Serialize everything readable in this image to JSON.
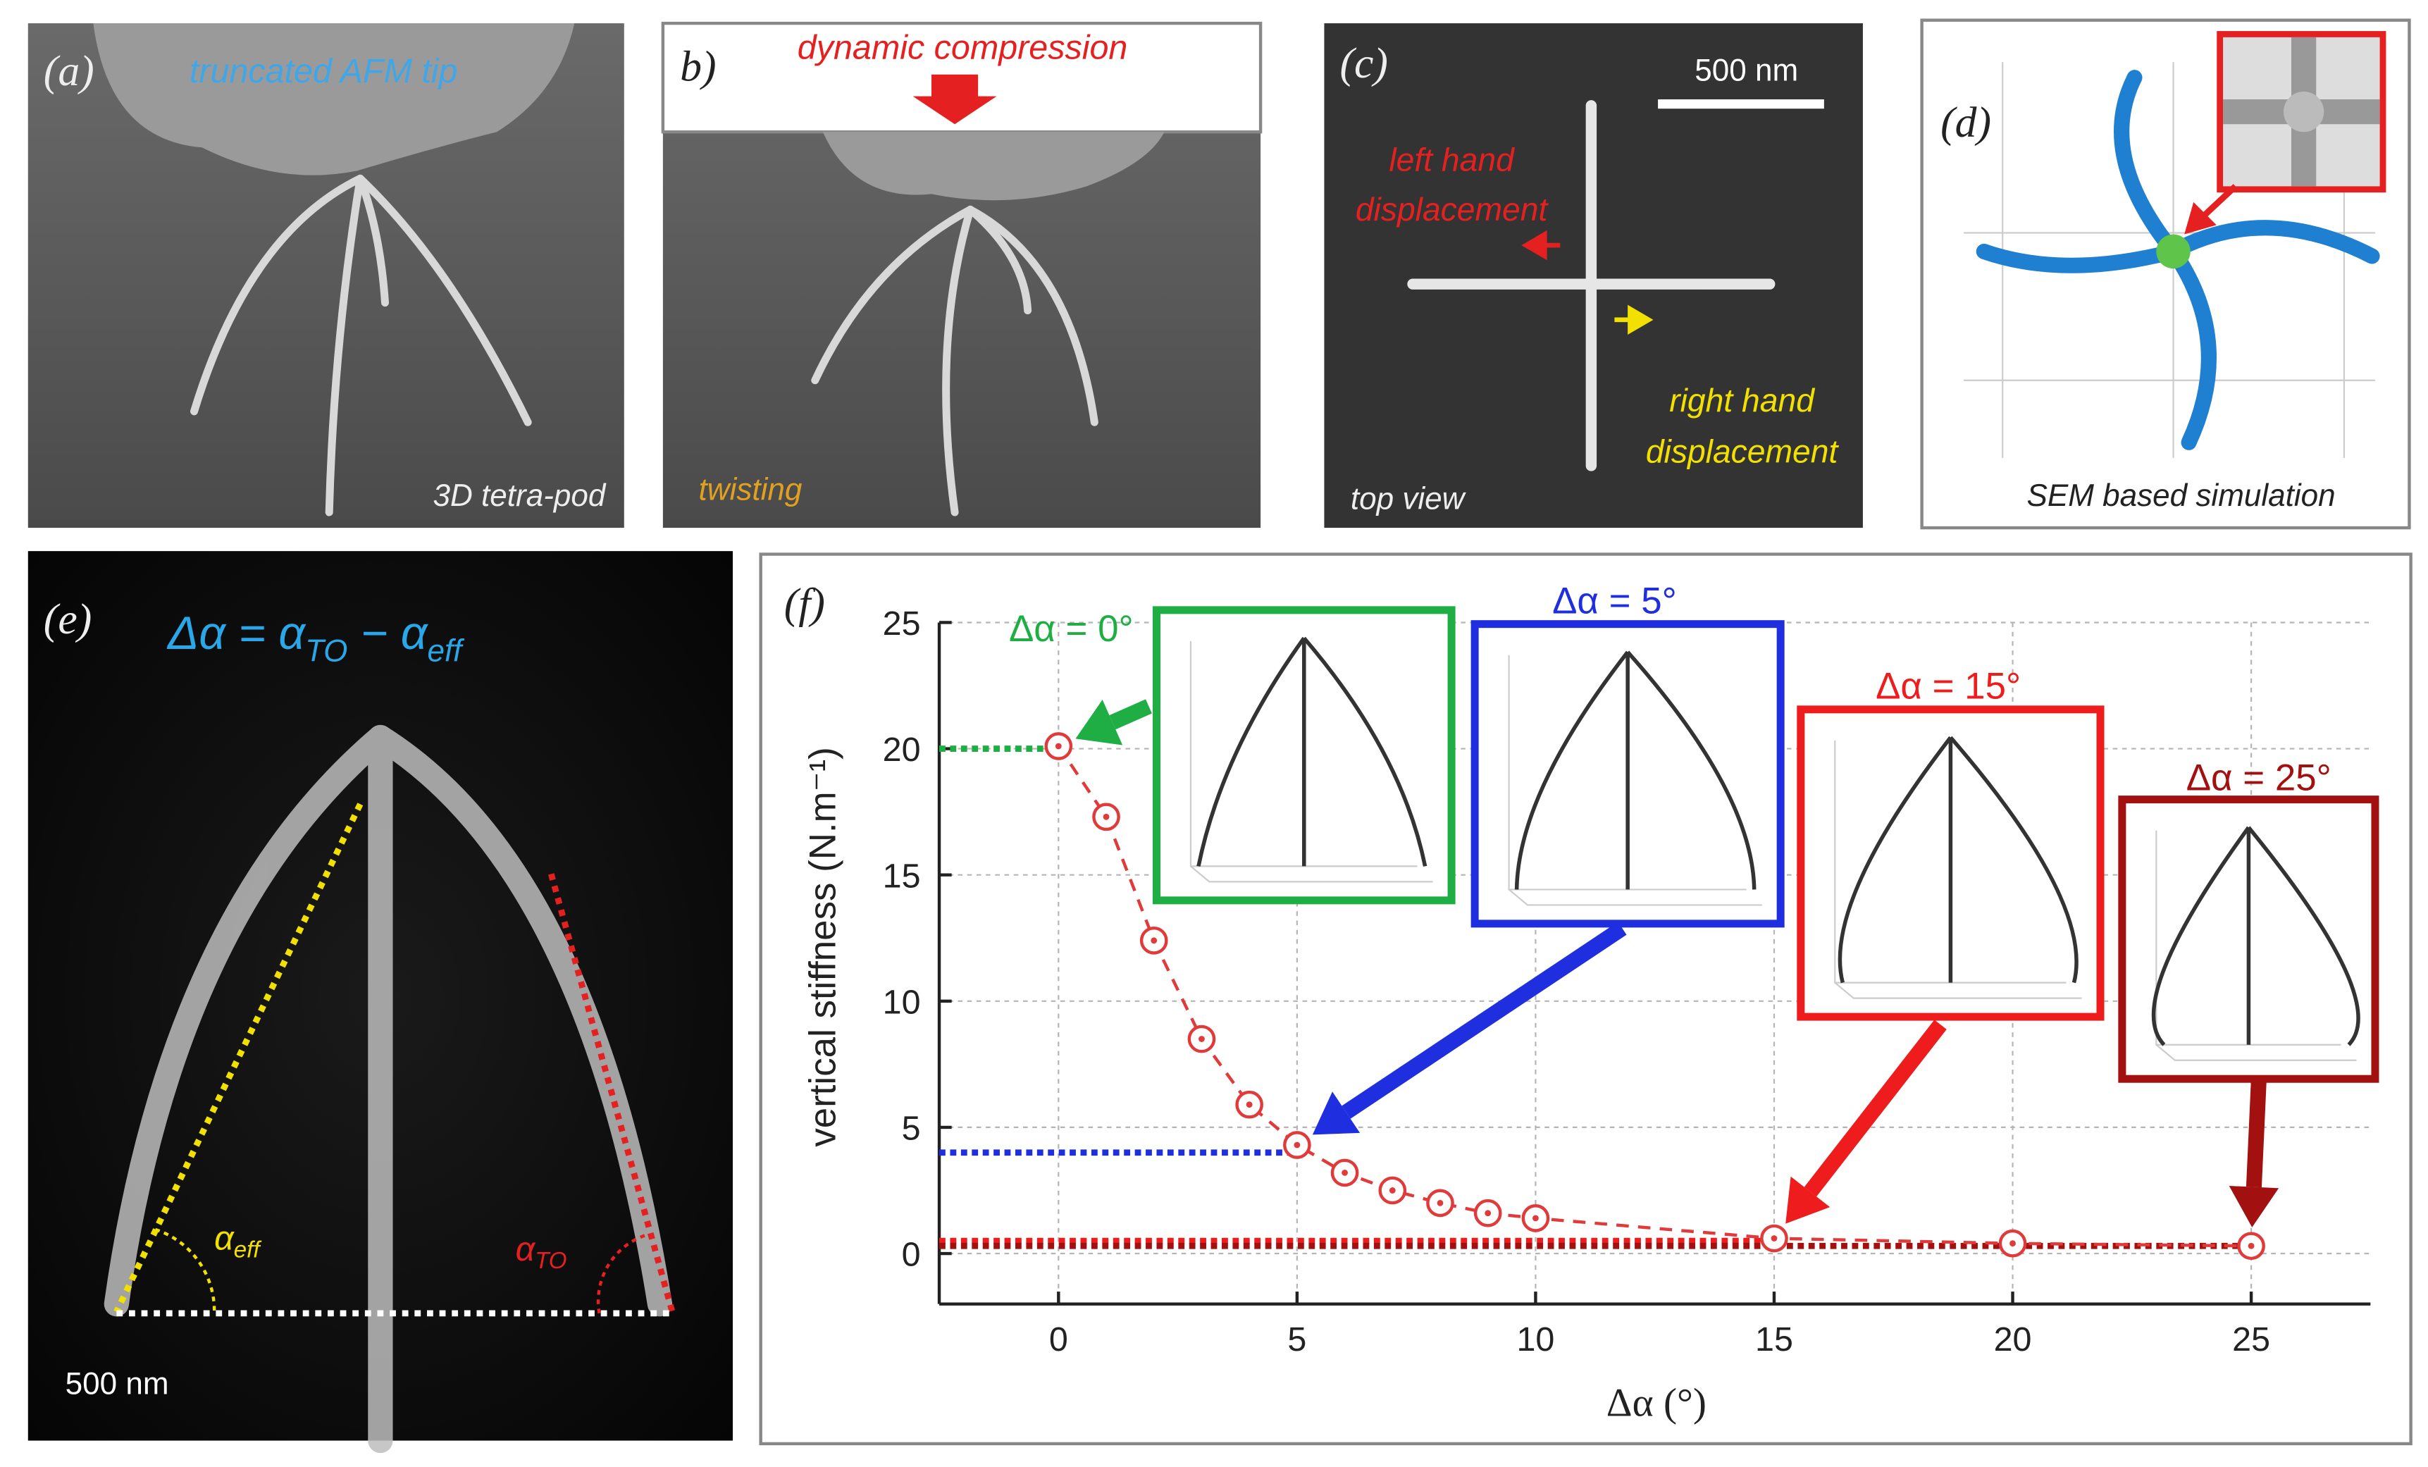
{
  "panels": {
    "a": {
      "label": "(a)",
      "top_text": "truncated AFM tip",
      "bottom_text": "3D tetra-pod"
    },
    "b": {
      "label": "b)",
      "top_text": "dynamic compression",
      "bottom_text": "twisting"
    },
    "c": {
      "label": "(c)",
      "scale_bar": "500 nm",
      "left_text": [
        "left hand",
        "displacement"
      ],
      "right_text": [
        "right hand",
        "displacement"
      ],
      "bottom_text": "top view"
    },
    "d": {
      "label": "(d)",
      "bottom_text": "SEM based simulation"
    },
    "e": {
      "label": "(e)",
      "equation": [
        "Δα = α",
        "TO",
        " − α",
        "eff"
      ],
      "alpha_eff": [
        "α",
        "eff"
      ],
      "alpha_to": [
        "α",
        "TO"
      ],
      "scale_bar": "500 nm"
    }
  },
  "chart_data": {
    "type": "scatter",
    "label": "(f)",
    "xlabel": "Δα (°)",
    "ylabel": "vertical stiffness (N.m⁻¹)",
    "x": [
      0,
      1,
      2,
      3,
      4,
      5,
      6,
      7,
      8,
      9,
      10,
      15,
      20,
      25
    ],
    "values": [
      20.1,
      17.3,
      12.4,
      8.5,
      5.9,
      4.3,
      3.2,
      2.5,
      2.0,
      1.6,
      1.4,
      0.6,
      0.4,
      0.3
    ],
    "color": "#e03a3a",
    "xlim": [
      -2.5,
      27.5
    ],
    "xticks": [
      0,
      5,
      10,
      15,
      20,
      25
    ],
    "ylim": [
      -2,
      25
    ],
    "yticks": [
      0,
      5,
      10,
      15,
      20,
      25
    ],
    "grid": true,
    "highlights": [
      {
        "label": "Δα = 0°",
        "x": 0,
        "y": 20,
        "color": "#1fae44"
      },
      {
        "label": "Δα = 5°",
        "x": 5,
        "y": 4,
        "color": "#1f2fe0"
      },
      {
        "label": "Δα = 15°",
        "x": 15,
        "y": 0.5,
        "color": "#ee1c1c"
      },
      {
        "label": "Δα = 25°",
        "x": 25,
        "y": 0.3,
        "color": "#a31010"
      }
    ]
  }
}
